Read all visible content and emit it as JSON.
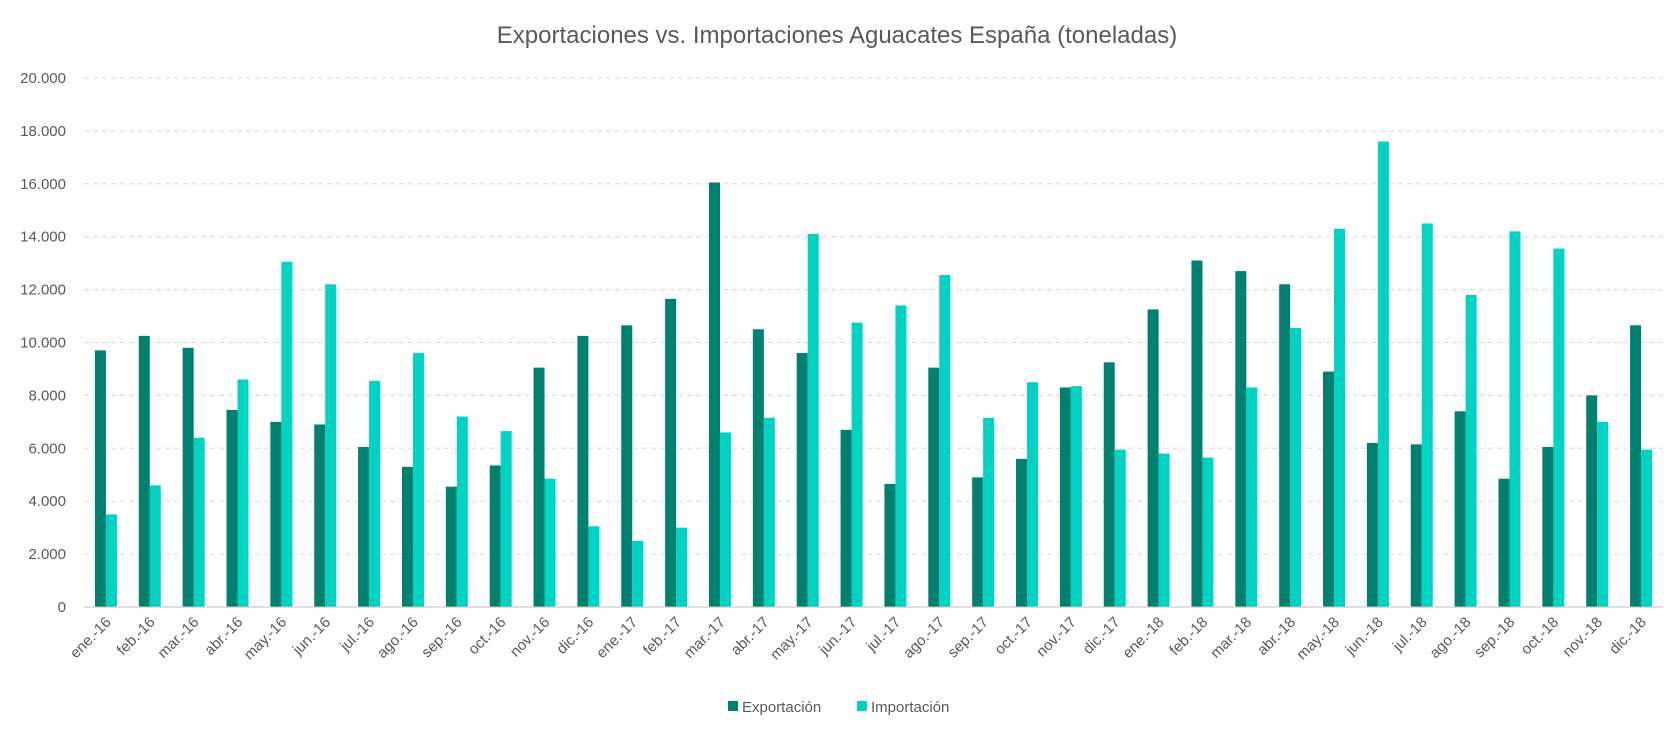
{
  "chart_data": {
    "type": "bar",
    "title": "Exportaciones vs. Importaciones Aguacates España (toneladas)",
    "xlabel": "",
    "ylabel": "",
    "ylim": [
      0,
      20000
    ],
    "yticks": [
      0,
      2000,
      4000,
      6000,
      8000,
      10000,
      12000,
      14000,
      16000,
      18000,
      20000
    ],
    "ytick_labels": [
      "0",
      "2.000",
      "4.000",
      "6.000",
      "8.000",
      "10.000",
      "12.000",
      "14.000",
      "16.000",
      "18.000",
      "20.000"
    ],
    "grid": true,
    "legend_position": "bottom",
    "categories": [
      "ene.-16",
      "feb.-16",
      "mar.-16",
      "abr.-16",
      "may.-16",
      "jun.-16",
      "jul.-16",
      "ago.-16",
      "sep.-16",
      "oct.-16",
      "nov.-16",
      "dic.-16",
      "ene.-17",
      "feb.-17",
      "mar.-17",
      "abr.-17",
      "may.-17",
      "jun.-17",
      "jul.-17",
      "ago.-17",
      "sep.-17",
      "oct.-17",
      "nov.-17",
      "dic.-17",
      "ene.-18",
      "feb.-18",
      "mar.-18",
      "abr.-18",
      "may.-18",
      "jun.-18",
      "jul.-18",
      "ago.-18",
      "sep.-18",
      "oct.-18",
      "nov.-18",
      "dic.-18"
    ],
    "series": [
      {
        "name": "Exportación",
        "color": "#00806e",
        "values": [
          9700,
          10250,
          9800,
          7450,
          7000,
          6900,
          6050,
          5300,
          4550,
          5350,
          9050,
          10250,
          10650,
          11650,
          16050,
          10500,
          9600,
          6700,
          4650,
          9050,
          4900,
          5600,
          8300,
          9250,
          11250,
          13100,
          12700,
          12200,
          8900,
          6200,
          6150,
          7400,
          4850,
          6050,
          8000,
          10650
        ]
      },
      {
        "name": "Importación",
        "color": "#00d2c3",
        "values": [
          3500,
          4600,
          6400,
          8600,
          13050,
          12200,
          8550,
          9600,
          7200,
          6650,
          4850,
          3050,
          2500,
          3000,
          6600,
          7150,
          14100,
          10750,
          11400,
          12550,
          7150,
          8500,
          8350,
          5950,
          5800,
          5650,
          8300,
          10550,
          14300,
          17600,
          14500,
          11800,
          14200,
          13550,
          7000,
          5950
        ]
      }
    ]
  }
}
